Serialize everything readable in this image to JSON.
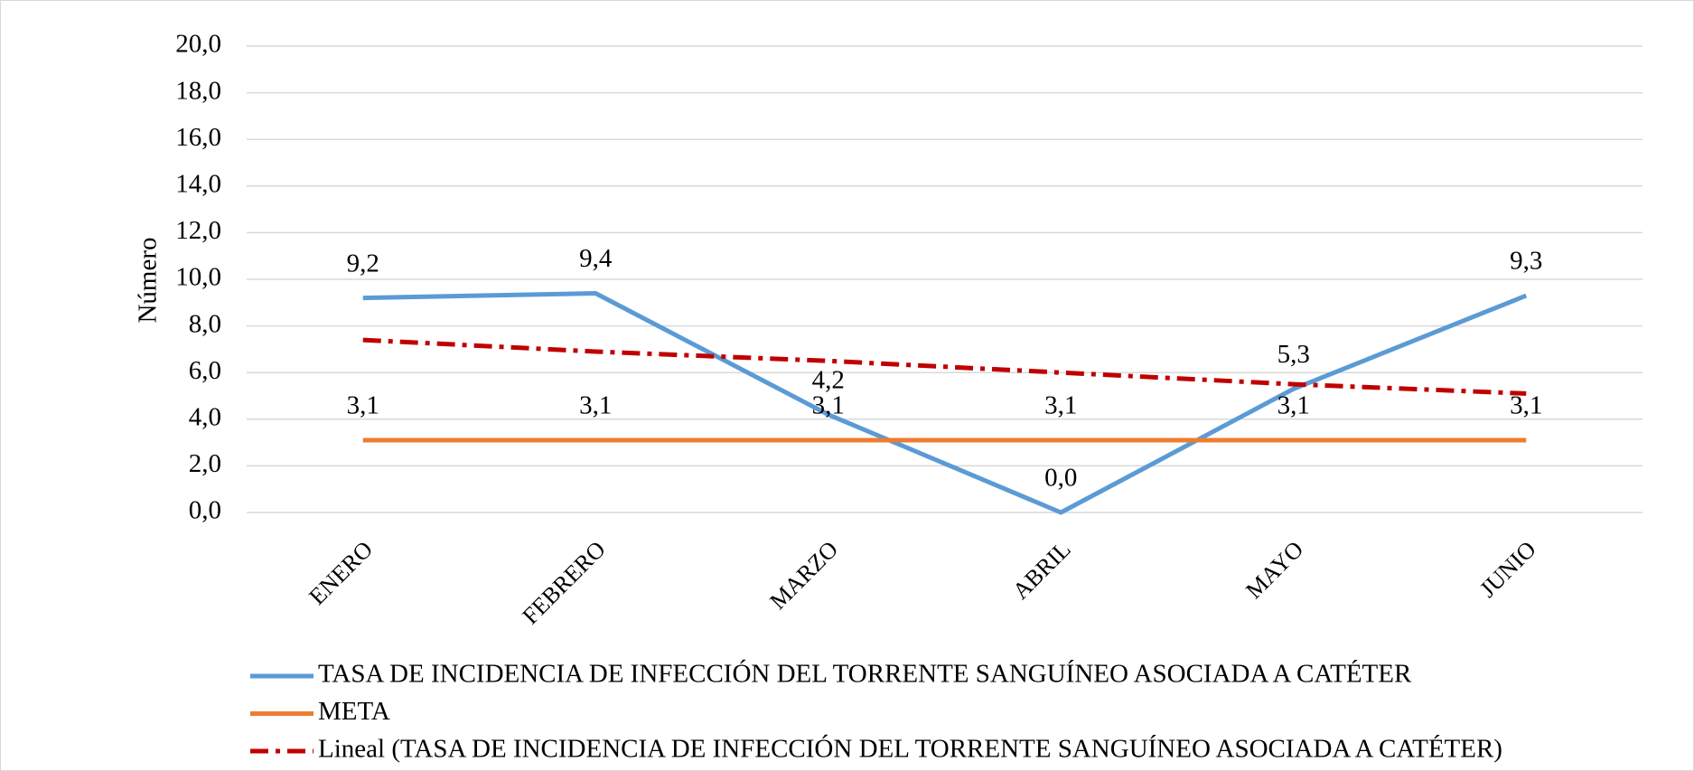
{
  "chart_data": {
    "type": "line",
    "y_label": "Número",
    "categories": [
      "ENERO",
      "FEBRERO",
      "MARZO",
      "ABRIL",
      "MAYO",
      "JUNIO"
    ],
    "series": [
      {
        "name": "TASA DE INCIDENCIA DE INFECCIÓN DEL TORRENTE SANGUÍNEO ASOCIADA A CATÉTER",
        "color": "#5b9bd5",
        "line_style": "solid",
        "values": [
          9.2,
          9.4,
          4.2,
          0.0,
          5.3,
          9.3
        ],
        "value_labels": [
          "9,2",
          "9,4",
          "4,2",
          "0,0",
          "5,3",
          "9,3"
        ]
      },
      {
        "name": "META",
        "color": "#ed7d31",
        "line_style": "solid",
        "values": [
          3.1,
          3.1,
          3.1,
          3.1,
          3.1,
          3.1
        ],
        "value_labels": [
          "3,1",
          "3,1",
          "3,1",
          "3,1",
          "3,1",
          "3,1"
        ]
      },
      {
        "name": "Lineal (TASA DE INCIDENCIA DE INFECCIÓN DEL TORRENTE SANGUÍNEO ASOCIADA A CATÉTER)",
        "color": "#c00000",
        "line_style": "dash-dot",
        "values": [
          7.4,
          6.9,
          6.5,
          6.0,
          5.5,
          5.1
        ]
      }
    ],
    "ylim": [
      0,
      20
    ],
    "yticks": [
      {
        "value": 0,
        "label": "0,0"
      },
      {
        "value": 2,
        "label": "2,0"
      },
      {
        "value": 4,
        "label": "4,0"
      },
      {
        "value": 6,
        "label": "6,0"
      },
      {
        "value": 8,
        "label": "8,0"
      },
      {
        "value": 10,
        "label": "10,0"
      },
      {
        "value": 12,
        "label": "12,0"
      },
      {
        "value": 14,
        "label": "14,0"
      },
      {
        "value": 16,
        "label": "16,0"
      },
      {
        "value": 18,
        "label": "18,0"
      },
      {
        "value": 20,
        "label": "20,0"
      }
    ],
    "grid": true,
    "legend": "bottom"
  }
}
